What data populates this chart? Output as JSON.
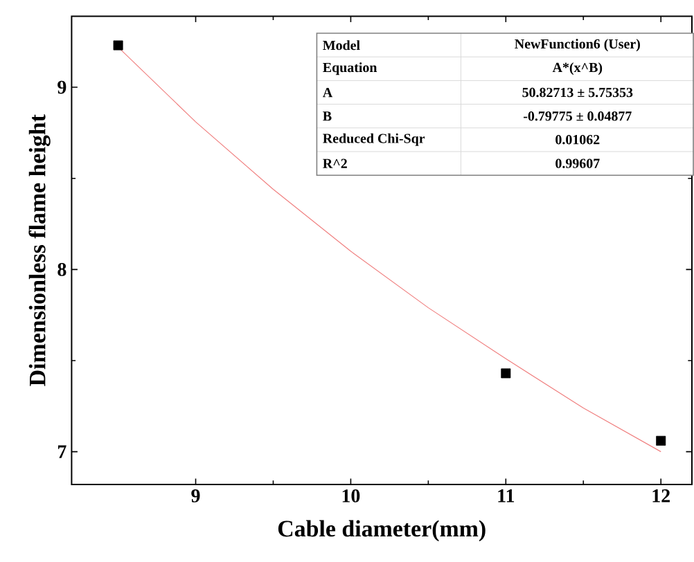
{
  "chart_data": {
    "type": "scatter",
    "xlabel": "Cable diameter(mm)",
    "ylabel": "Dimensionless flame height",
    "series": [
      {
        "color": "#000000",
        "marker": "square",
        "x": [
          8.5,
          11,
          12
        ],
        "values": [
          9.23,
          7.43,
          7.06
        ]
      },
      {
        "type": "line",
        "color": "#f08080",
        "marker": "none",
        "x": [
          8.5,
          9,
          9.5,
          10,
          10.5,
          11,
          11.5,
          12
        ],
        "values": [
          9.22,
          8.81,
          8.44,
          8.1,
          7.79,
          7.51,
          7.24,
          7.0
        ]
      }
    ],
    "xlim": [
      8.2,
      12.2
    ],
    "ylim": [
      6.82,
      9.39
    ],
    "xticks": [
      9,
      10,
      11,
      12
    ],
    "yticks": [
      7,
      8,
      9
    ],
    "annotations": [
      "Model",
      "NewFunction6 (User)",
      "Equation",
      "A*(x^B)",
      "A",
      "50.82713 ± 5.75353",
      "B",
      "-0.79775 ± 0.04877",
      "Reduced Chi-Sqr",
      "0.01062",
      "R^2",
      "0.99607"
    ]
  }
}
